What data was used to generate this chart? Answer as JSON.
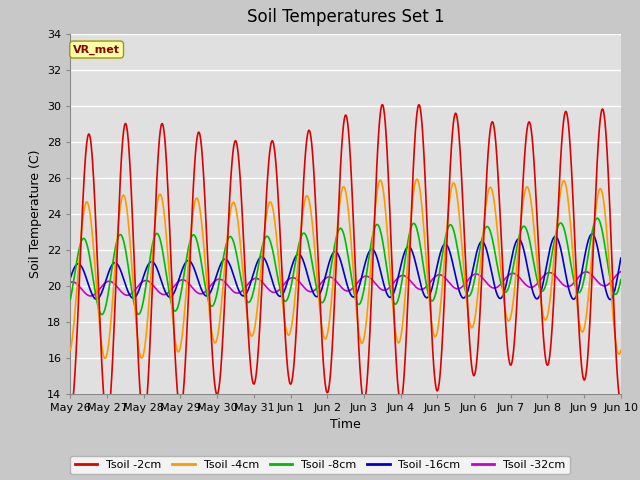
{
  "title": "Soil Temperatures Set 1",
  "xlabel": "Time",
  "ylabel": "Soil Temperature (C)",
  "ylim": [
    14,
    34
  ],
  "x_tick_labels": [
    "May 26",
    "May 27",
    "May 28",
    "May 29",
    "May 30",
    "May 31",
    "Jun 1",
    "Jun 2",
    "Jun 3",
    "Jun 4",
    "Jun 5",
    "Jun 6",
    "Jun 7",
    "Jun 8",
    "Jun 9",
    "Jun 10"
  ],
  "legend_labels": [
    "Tsoil -2cm",
    "Tsoil -4cm",
    "Tsoil -8cm",
    "Tsoil -16cm",
    "Tsoil -32cm"
  ],
  "colors": {
    "2cm": "#dd0000",
    "4cm": "#ff9900",
    "8cm": "#00bb00",
    "16cm": "#0000cc",
    "32cm": "#cc00cc"
  },
  "annotation_text": "VR_met",
  "title_fontsize": 12,
  "label_fontsize": 9,
  "tick_fontsize": 8
}
